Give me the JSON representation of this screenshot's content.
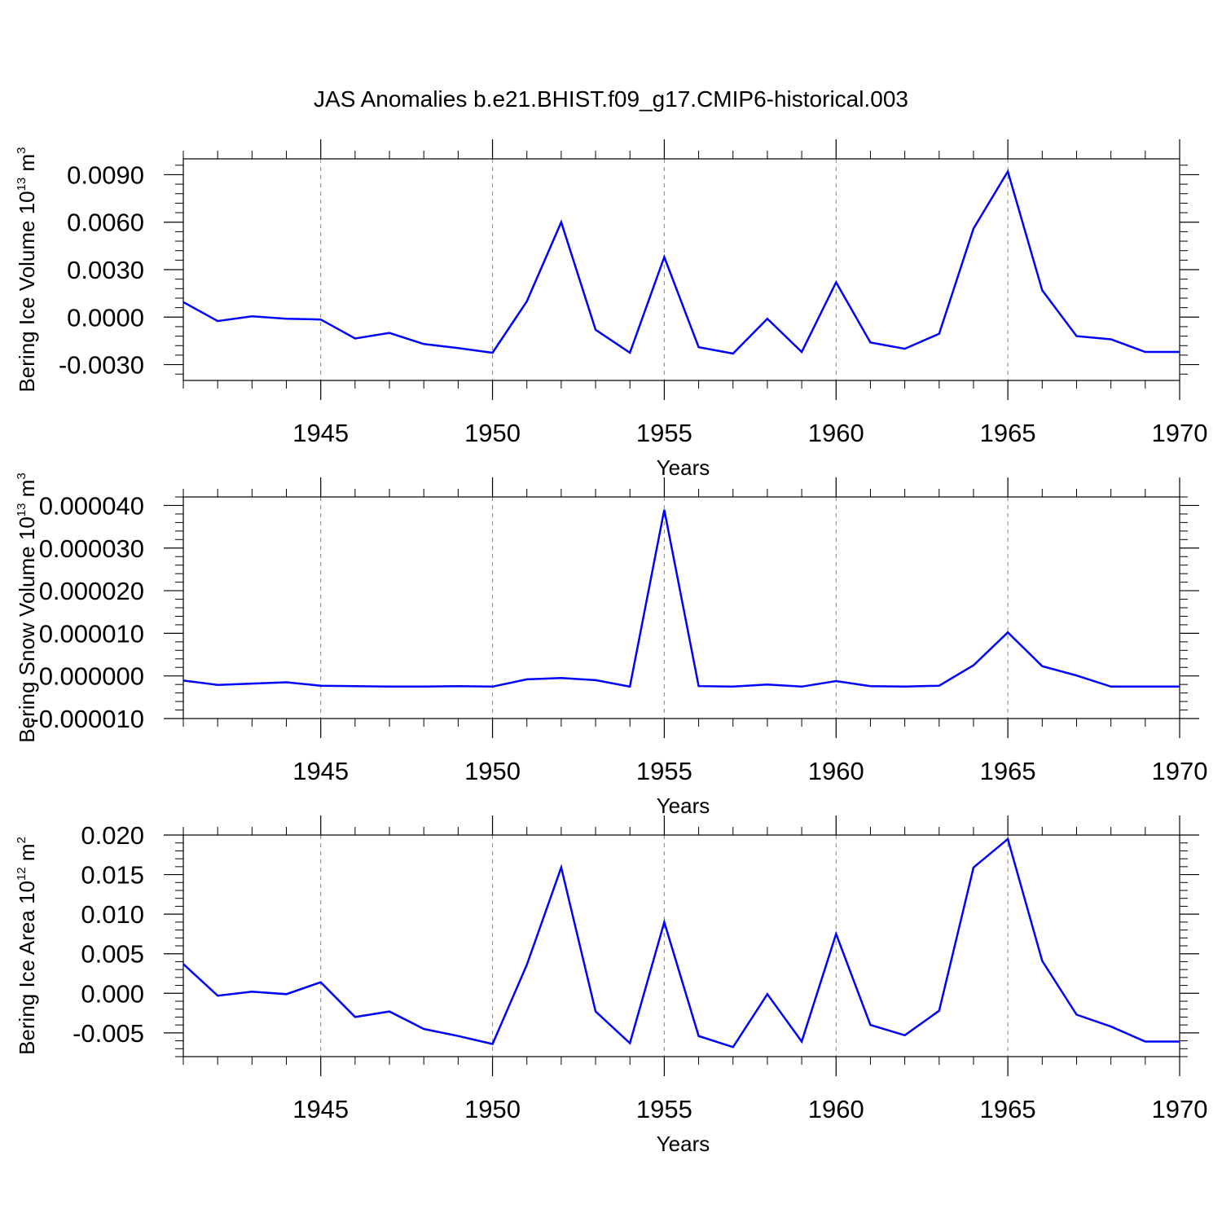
{
  "title": "JAS Anomalies b.e21.BHIST.f09_g17.CMIP6-historical.003",
  "colors": {
    "line": "#0000ff",
    "axis": "#000000",
    "grid": "#888888"
  },
  "chart_data": [
    {
      "type": "line",
      "xlabel": "Years",
      "ylabel_text": "Bering Ice Volume 10",
      "ylabel_exp": "13",
      "ylabel_unit": " m",
      "ylabel_unit_exp": "3",
      "xlim": [
        1941,
        1970
      ],
      "ylim": [
        -0.004,
        0.01
      ],
      "xticks": [
        1945,
        1950,
        1955,
        1960,
        1965,
        1970
      ],
      "yticks": [
        -0.003,
        0.0,
        0.003,
        0.006,
        0.009
      ],
      "ytick_labels": [
        "-0.0030",
        "0.0000",
        "0.0030",
        "0.0060",
        "0.0090"
      ],
      "grid": "vertical dashed at major x ticks",
      "x": [
        1941,
        1942,
        1943,
        1944,
        1945,
        1946,
        1947,
        1948,
        1949,
        1950,
        1951,
        1952,
        1953,
        1954,
        1955,
        1956,
        1957,
        1958,
        1959,
        1960,
        1961,
        1962,
        1963,
        1964,
        1965,
        1966,
        1967,
        1968,
        1969,
        1970
      ],
      "values": [
        0.00095,
        -0.00025,
        5e-05,
        -0.0001,
        -0.00015,
        -0.00135,
        -0.001,
        -0.0017,
        -0.00195,
        -0.00225,
        0.001,
        0.006,
        -0.0008,
        -0.00225,
        0.0038,
        -0.0019,
        -0.0023,
        -0.0001,
        -0.0022,
        0.0022,
        -0.0016,
        -0.002,
        -0.00105,
        0.0056,
        0.0092,
        0.0017,
        -0.0012,
        -0.0014,
        -0.0022,
        -0.0022
      ]
    },
    {
      "type": "line",
      "xlabel": "Years",
      "ylabel_text": "Bering Snow Volume 10",
      "ylabel_exp": "13",
      "ylabel_unit": " m",
      "ylabel_unit_exp": "3",
      "xlim": [
        1941,
        1970
      ],
      "ylim": [
        -1e-05,
        4.2e-05
      ],
      "xticks": [
        1945,
        1950,
        1955,
        1960,
        1965,
        1970
      ],
      "yticks": [
        -1e-05,
        0.0,
        1e-05,
        2e-05,
        3e-05,
        4e-05
      ],
      "ytick_labels": [
        "-0.000010",
        "0.000000",
        "0.000010",
        "0.000020",
        "0.000030",
        "0.000040"
      ],
      "grid": "vertical dashed at major x ticks",
      "x": [
        1941,
        1942,
        1943,
        1944,
        1945,
        1946,
        1947,
        1948,
        1949,
        1950,
        1951,
        1952,
        1953,
        1954,
        1955,
        1956,
        1957,
        1958,
        1959,
        1960,
        1961,
        1962,
        1963,
        1964,
        1965,
        1966,
        1967,
        1968,
        1969,
        1970
      ],
      "values": [
        -1.1e-06,
        -2.1e-06,
        -1.8e-06,
        -1.5e-06,
        -2.3e-06,
        -2.4e-06,
        -2.5e-06,
        -2.5e-06,
        -2.4e-06,
        -2.5e-06,
        -8e-07,
        -5e-07,
        -1e-06,
        -2.5e-06,
        3.9e-05,
        -2.4e-06,
        -2.5e-06,
        -2e-06,
        -2.5e-06,
        -1.2e-06,
        -2.4e-06,
        -2.5e-06,
        -2.3e-06,
        2.5e-06,
        1.02e-05,
        2.3e-06,
        1e-07,
        -2.5e-06,
        -2.5e-06,
        -2.5e-06
      ]
    },
    {
      "type": "line",
      "xlabel": "Years",
      "ylabel_text": "Bering Ice Area 10",
      "ylabel_exp": "12",
      "ylabel_unit": " m",
      "ylabel_unit_exp": "2",
      "xlim": [
        1941,
        1970
      ],
      "ylim": [
        -0.008,
        0.02
      ],
      "xticks": [
        1945,
        1950,
        1955,
        1960,
        1965,
        1970
      ],
      "yticks": [
        -0.005,
        0.0,
        0.005,
        0.01,
        0.015,
        0.02
      ],
      "ytick_labels": [
        "-0.005",
        "0.000",
        "0.005",
        "0.010",
        "0.015",
        "0.020"
      ],
      "grid": "vertical dashed at major x ticks",
      "x": [
        1941,
        1942,
        1943,
        1944,
        1945,
        1946,
        1947,
        1948,
        1949,
        1950,
        1951,
        1952,
        1953,
        1954,
        1955,
        1956,
        1957,
        1958,
        1959,
        1960,
        1961,
        1962,
        1963,
        1964,
        1965,
        1966,
        1967,
        1968,
        1969,
        1970
      ],
      "values": [
        0.0037,
        -0.0003,
        0.0002,
        -0.0001,
        0.0014,
        -0.003,
        -0.0023,
        -0.0045,
        -0.0054,
        -0.0064,
        0.0036,
        0.0159,
        -0.0023,
        -0.0063,
        0.009,
        -0.0054,
        -0.0068,
        -0.0001,
        -0.0061,
        0.0075,
        -0.004,
        -0.0053,
        -0.0022,
        0.0159,
        0.0195,
        0.0041,
        -0.0027,
        -0.0042,
        -0.0061,
        -0.0061
      ]
    }
  ]
}
